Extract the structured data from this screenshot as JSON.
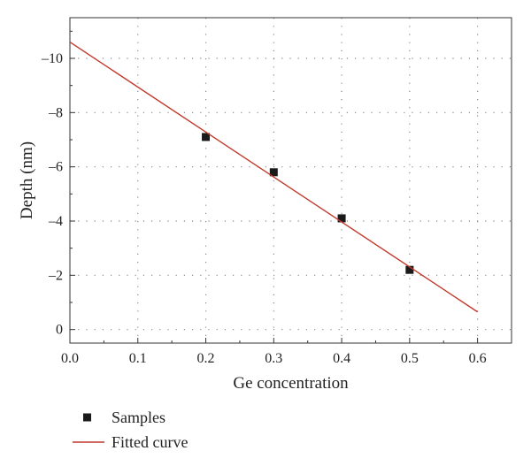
{
  "chart_data": {
    "type": "scatter",
    "title": "",
    "xlabel": "Ge concentration",
    "ylabel": "Depth (nm)",
    "xlim": [
      0.0,
      0.65
    ],
    "ylim": [
      0.5,
      -11.5
    ],
    "x_ticks": [
      0.0,
      0.1,
      0.2,
      0.3,
      0.4,
      0.5,
      0.6
    ],
    "x_tick_labels": [
      "0.0",
      "0.1",
      "0.2",
      "0.3",
      "0.4",
      "0.5",
      "0.6"
    ],
    "y_ticks": [
      0,
      -2,
      -4,
      -6,
      -8,
      -10
    ],
    "y_tick_labels": [
      "0",
      "–2",
      "–4",
      "–6",
      "–8",
      "–10"
    ],
    "grid": true,
    "legend_position": "bottom-left",
    "series": [
      {
        "name": "Samples",
        "marker": "square",
        "color": "#1a1a1a",
        "x": [
          0.2,
          0.3,
          0.4,
          0.5
        ],
        "y": [
          -7.1,
          -5.8,
          -4.1,
          -2.2
        ]
      },
      {
        "name": "Fitted curve",
        "type": "line",
        "color": "#c0392b",
        "x": [
          0.0,
          0.6
        ],
        "y": [
          -10.6,
          -0.65
        ]
      }
    ]
  }
}
